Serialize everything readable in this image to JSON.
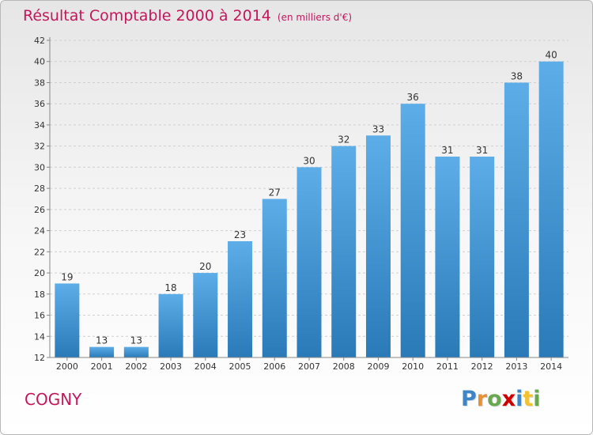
{
  "header": {
    "title": "Résultat Comptable 2000 à 2014",
    "subtitle": "(en milliers d'€)"
  },
  "footer": {
    "commune": "COGNY",
    "logo_letters": [
      "P",
      "r",
      "o",
      "x",
      "i",
      "t",
      "i"
    ]
  },
  "colors": {
    "accent": "#c2185b",
    "bar_top": "#5dade8",
    "bar_bottom": "#2a7ab8",
    "logo_letters": [
      "#3d85c6",
      "#e69138",
      "#6aa84f",
      "#cc0000",
      "#3d85c6",
      "#f1c232",
      "#6aa84f"
    ]
  },
  "chart_data": {
    "type": "bar",
    "categories": [
      "2000",
      "2001",
      "2002",
      "2003",
      "2004",
      "2005",
      "2006",
      "2007",
      "2008",
      "2009",
      "2010",
      "2011",
      "2012",
      "2013",
      "2014"
    ],
    "values": [
      19,
      13,
      13,
      18,
      20,
      23,
      27,
      30,
      32,
      33,
      36,
      31,
      31,
      38,
      40
    ],
    "data_labels": [
      "19",
      "13",
      "13",
      "18",
      "20",
      "23",
      "27",
      "30",
      "32",
      "33",
      "36",
      "31",
      "31",
      "38",
      "40"
    ],
    "ylim": [
      12,
      42
    ],
    "yticks": [
      12,
      14,
      16,
      18,
      20,
      22,
      24,
      26,
      28,
      30,
      32,
      34,
      36,
      38,
      40,
      42
    ],
    "grid": "horizontal",
    "xlabel": "",
    "ylabel": ""
  }
}
